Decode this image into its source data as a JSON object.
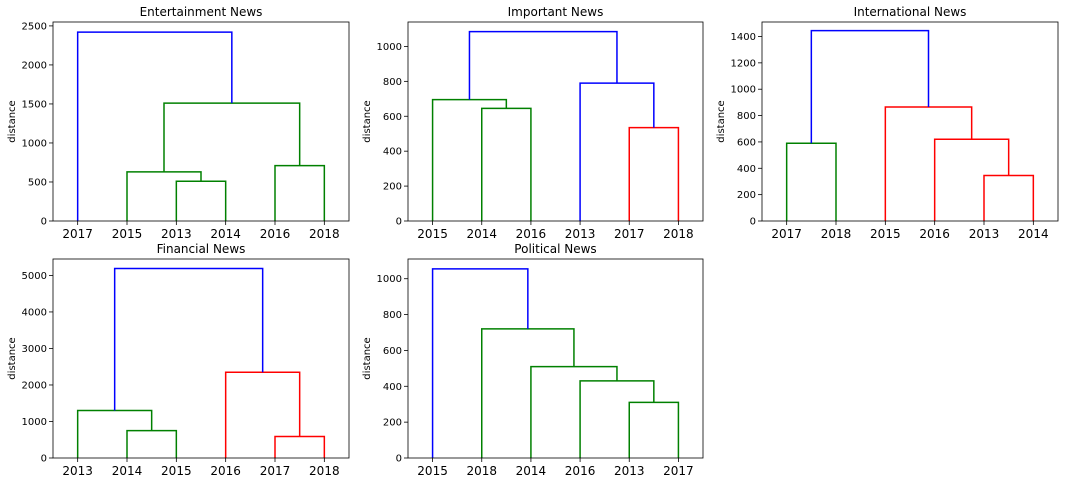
{
  "colors": {
    "blue": "#0000ff",
    "green": "#008000",
    "red": "#ff0000",
    "axis": "#000000"
  },
  "chart_data": [
    {
      "type": "dendrogram",
      "title": "Entertainment News",
      "ylabel": "distance",
      "ylim": [
        0,
        2550
      ],
      "yticks": [
        0,
        500,
        1000,
        1500,
        2000,
        2500
      ],
      "leaves": [
        "2017",
        "2015",
        "2013",
        "2014",
        "2016",
        "2018"
      ],
      "links": [
        {
          "left": [
            2,
            0
          ],
          "right": [
            3,
            0
          ],
          "height": 510,
          "color": "green"
        },
        {
          "left": [
            1,
            0
          ],
          "right": [
            2.5,
            510
          ],
          "height": 630,
          "color": "green"
        },
        {
          "left": [
            4,
            0
          ],
          "right": [
            5,
            0
          ],
          "height": 710,
          "color": "green"
        },
        {
          "left": [
            1.75,
            630
          ],
          "right": [
            4.5,
            710
          ],
          "height": 1510,
          "color": "green"
        },
        {
          "left": [
            0,
            0
          ],
          "right": [
            3.125,
            1510
          ],
          "height": 2420,
          "color": "blue"
        }
      ]
    },
    {
      "type": "dendrogram",
      "title": "Important News",
      "ylabel": "distance",
      "ylim": [
        0,
        1140
      ],
      "yticks": [
        0,
        200,
        400,
        600,
        800,
        1000
      ],
      "leaves": [
        "2015",
        "2014",
        "2016",
        "2013",
        "2017",
        "2018"
      ],
      "links": [
        {
          "left": [
            1,
            0
          ],
          "right": [
            2,
            0
          ],
          "height": 645,
          "color": "green"
        },
        {
          "left": [
            0,
            0
          ],
          "right": [
            1.5,
            645
          ],
          "height": 695,
          "color": "green"
        },
        {
          "left": [
            4,
            0
          ],
          "right": [
            5,
            0
          ],
          "height": 535,
          "color": "red"
        },
        {
          "left": [
            3,
            0
          ],
          "right": [
            4.5,
            535
          ],
          "height": 790,
          "color": "blue"
        },
        {
          "left": [
            0.75,
            695
          ],
          "right": [
            3.75,
            790
          ],
          "height": 1085,
          "color": "blue"
        }
      ]
    },
    {
      "type": "dendrogram",
      "title": "International News",
      "ylabel": "distance",
      "ylim": [
        0,
        1510
      ],
      "yticks": [
        0,
        200,
        400,
        600,
        800,
        1000,
        1200,
        1400
      ],
      "leaves": [
        "2017",
        "2018",
        "2015",
        "2016",
        "2013",
        "2014"
      ],
      "links": [
        {
          "left": [
            0,
            0
          ],
          "right": [
            1,
            0
          ],
          "height": 590,
          "color": "green"
        },
        {
          "left": [
            4,
            0
          ],
          "right": [
            5,
            0
          ],
          "height": 345,
          "color": "red"
        },
        {
          "left": [
            3,
            0
          ],
          "right": [
            4.5,
            345
          ],
          "height": 620,
          "color": "red"
        },
        {
          "left": [
            2,
            0
          ],
          "right": [
            3.75,
            620
          ],
          "height": 865,
          "color": "red"
        },
        {
          "left": [
            0.5,
            590
          ],
          "right": [
            2.875,
            865
          ],
          "height": 1445,
          "color": "blue"
        }
      ]
    },
    {
      "type": "dendrogram",
      "title": "Financial News",
      "ylabel": "distance",
      "ylim": [
        0,
        5450
      ],
      "yticks": [
        0,
        1000,
        2000,
        3000,
        4000,
        5000
      ],
      "leaves": [
        "2013",
        "2014",
        "2015",
        "2016",
        "2017",
        "2018"
      ],
      "links": [
        {
          "left": [
            1,
            0
          ],
          "right": [
            2,
            0
          ],
          "height": 750,
          "color": "green"
        },
        {
          "left": [
            0,
            0
          ],
          "right": [
            1.5,
            750
          ],
          "height": 1300,
          "color": "green"
        },
        {
          "left": [
            4,
            0
          ],
          "right": [
            5,
            0
          ],
          "height": 590,
          "color": "red"
        },
        {
          "left": [
            3,
            0
          ],
          "right": [
            4.5,
            590
          ],
          "height": 2350,
          "color": "red"
        },
        {
          "left": [
            0.75,
            1300
          ],
          "right": [
            3.75,
            2350
          ],
          "height": 5190,
          "color": "blue"
        }
      ]
    },
    {
      "type": "dendrogram",
      "title": "Political News",
      "ylabel": "distance",
      "ylim": [
        0,
        1110
      ],
      "yticks": [
        0,
        200,
        400,
        600,
        800,
        1000
      ],
      "leaves": [
        "2015",
        "2018",
        "2014",
        "2016",
        "2013",
        "2017"
      ],
      "links": [
        {
          "left": [
            4,
            0
          ],
          "right": [
            5,
            0
          ],
          "height": 310,
          "color": "green"
        },
        {
          "left": [
            3,
            0
          ],
          "right": [
            4.5,
            310
          ],
          "height": 430,
          "color": "green"
        },
        {
          "left": [
            2,
            0
          ],
          "right": [
            3.75,
            430
          ],
          "height": 510,
          "color": "green"
        },
        {
          "left": [
            1,
            0
          ],
          "right": [
            2.875,
            510
          ],
          "height": 720,
          "color": "green"
        },
        {
          "left": [
            0,
            0
          ],
          "right": [
            1.9375,
            720
          ],
          "height": 1055,
          "color": "blue"
        }
      ]
    }
  ]
}
